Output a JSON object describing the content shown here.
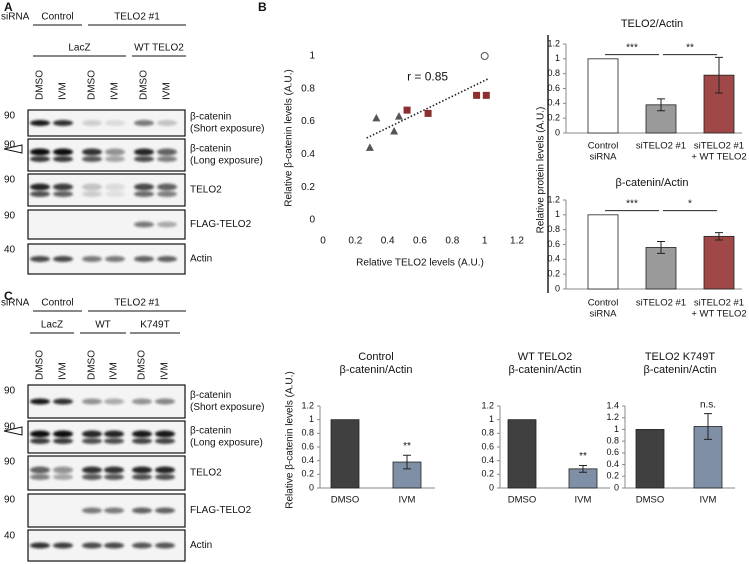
{
  "panel_labels": [
    "A",
    "B",
    "C"
  ],
  "panel_a": {
    "sirna": "siRNA",
    "groups": [
      "Control",
      "TELO2 #1"
    ],
    "subgroups": [
      "LacZ",
      "WT TELO2"
    ],
    "lanes": [
      "DMSO",
      "IVM",
      "DMSO",
      "IVM",
      "DMSO",
      "IVM"
    ],
    "rows": [
      {
        "marker": 90,
        "label": [
          "β-catenin",
          "(Short exposure)"
        ]
      },
      {
        "marker": 90,
        "label": [
          "β-catenin",
          "(Long exposure)"
        ]
      },
      {
        "marker": 90,
        "label": [
          "TELO2"
        ]
      },
      {
        "marker": 90,
        "label": [
          "FLAG-TELO2"
        ]
      },
      {
        "marker": 40,
        "label": [
          "Actin"
        ]
      }
    ]
  },
  "panel_c": {
    "sirna": "siRNA",
    "groups": [
      "Control",
      "TELO2 #1"
    ],
    "subgroups": [
      "LacZ",
      "WT",
      "K749T"
    ],
    "lanes": [
      "DMSO",
      "IVM",
      "DMSO",
      "IVM",
      "DMSO",
      "IVM"
    ],
    "rows": [
      {
        "marker": 90,
        "label": [
          "β-catenin",
          "(Short exposure)"
        ]
      },
      {
        "marker": 90,
        "label": [
          "β-catenin",
          "(Long exposure)"
        ]
      },
      {
        "marker": 90,
        "label": [
          "TELO2"
        ]
      },
      {
        "marker": 90,
        "label": [
          "FLAG-TELO2"
        ]
      },
      {
        "marker": 40,
        "label": [
          "Actin"
        ]
      }
    ]
  },
  "panel_b_ylabel": "Relative protein levels (A.U.)",
  "panel_c_ylabel": "Relative β-catenin levels (A.U.)",
  "chart_data": [
    {
      "type": "scatter",
      "xlabel": "Relative TELO2 levels (A.U.)",
      "ylabel": "Relative β-catenin levels (A.U.)",
      "annotation": "r = 0.85",
      "xlim": [
        0,
        1.2
      ],
      "ylim": [
        0,
        1
      ],
      "xticks": [
        0,
        0.2,
        0.4,
        0.6,
        0.8,
        1,
        1.2
      ],
      "yticks": [
        0,
        0.2,
        0.4,
        0.6,
        0.8,
        1
      ],
      "series": [
        {
          "marker": "triangle",
          "color": "#555555",
          "x": [
            0.29,
            0.33,
            0.44,
            0.47
          ],
          "y": [
            0.44,
            0.62,
            0.54,
            0.63
          ]
        },
        {
          "marker": "square",
          "color": "#8b2e2e",
          "x": [
            0.52,
            0.65,
            0.95,
            1.01
          ],
          "y": [
            0.67,
            0.65,
            0.76,
            0.76
          ]
        },
        {
          "marker": "open-circle",
          "color": "#555555",
          "x": [
            1
          ],
          "y": [
            1
          ]
        }
      ],
      "trend": {
        "x": [
          0.27,
          1.02
        ],
        "y": [
          0.5,
          0.86
        ],
        "color": "#222222"
      }
    },
    {
      "type": "bar",
      "title": [
        "TELO2/Actin"
      ],
      "categories": [
        [
          "Control",
          "siRNA"
        ],
        [
          "siTELO2 #1"
        ],
        [
          "siTELO2 #1",
          "+ WT TELO2"
        ]
      ],
      "values": [
        1,
        0.38,
        0.78
      ],
      "errors": [
        null,
        0.08,
        0.24
      ],
      "colors": [
        "#ffffff",
        "#9a9a9a",
        "#a04848"
      ],
      "ylim": [
        0,
        1.2
      ],
      "yticks": [
        0,
        0.2,
        0.4,
        0.6,
        0.8,
        1,
        1.2
      ],
      "significance": [
        {
          "pair": [
            0,
            1
          ],
          "label": "***"
        },
        {
          "pair": [
            1,
            2
          ],
          "label": "**"
        }
      ]
    },
    {
      "type": "bar",
      "title": [
        "β-catenin/Actin"
      ],
      "categories": [
        [
          "Control",
          "siRNA"
        ],
        [
          "siTELO2 #1"
        ],
        [
          "siTELO2 #1",
          "+ WT TELO2"
        ]
      ],
      "values": [
        1,
        0.56,
        0.71
      ],
      "errors": [
        null,
        0.08,
        0.05
      ],
      "colors": [
        "#ffffff",
        "#9a9a9a",
        "#a04848"
      ],
      "ylim": [
        0,
        1.2
      ],
      "yticks": [
        0,
        0.2,
        0.4,
        0.6,
        0.8,
        1,
        1.2
      ],
      "significance": [
        {
          "pair": [
            0,
            1
          ],
          "label": "***"
        },
        {
          "pair": [
            1,
            2
          ],
          "label": "*"
        }
      ]
    },
    {
      "type": "bar",
      "title": [
        "Control",
        "β-catenin/Actin"
      ],
      "categories": [
        [
          "DMSO"
        ],
        [
          "IVM"
        ]
      ],
      "values": [
        1,
        0.38
      ],
      "errors": [
        null,
        0.1
      ],
      "value_annotations": [
        null,
        "**"
      ],
      "colors": [
        "#404040",
        "#7f8fa6"
      ],
      "ylim": [
        0,
        1.2
      ],
      "yticks": [
        0,
        0.2,
        0.4,
        0.6,
        0.8,
        1,
        1.2
      ]
    },
    {
      "type": "bar",
      "title": [
        "WT TELO2",
        "β-catenin/Actin"
      ],
      "categories": [
        [
          "DMSO"
        ],
        [
          "IVM"
        ]
      ],
      "values": [
        1,
        0.28
      ],
      "errors": [
        null,
        0.05
      ],
      "value_annotations": [
        null,
        "**"
      ],
      "colors": [
        "#404040",
        "#7f8fa6"
      ],
      "ylim": [
        0,
        1.2
      ],
      "yticks": [
        0,
        0.2,
        0.4,
        0.6,
        0.8,
        1,
        1.2
      ]
    },
    {
      "type": "bar",
      "title": [
        "TELO2 K749T",
        "β-catenin/Actin"
      ],
      "categories": [
        [
          "DMSO"
        ],
        [
          "IVM"
        ]
      ],
      "values": [
        1,
        1.05
      ],
      "errors": [
        null,
        0.22
      ],
      "value_annotations": [
        null,
        "n.s."
      ],
      "colors": [
        "#404040",
        "#7f8fa6"
      ],
      "ylim": [
        0,
        1.4
      ],
      "yticks": [
        0,
        0.2,
        0.4,
        0.6,
        0.8,
        1,
        1.2,
        1.4
      ]
    }
  ]
}
